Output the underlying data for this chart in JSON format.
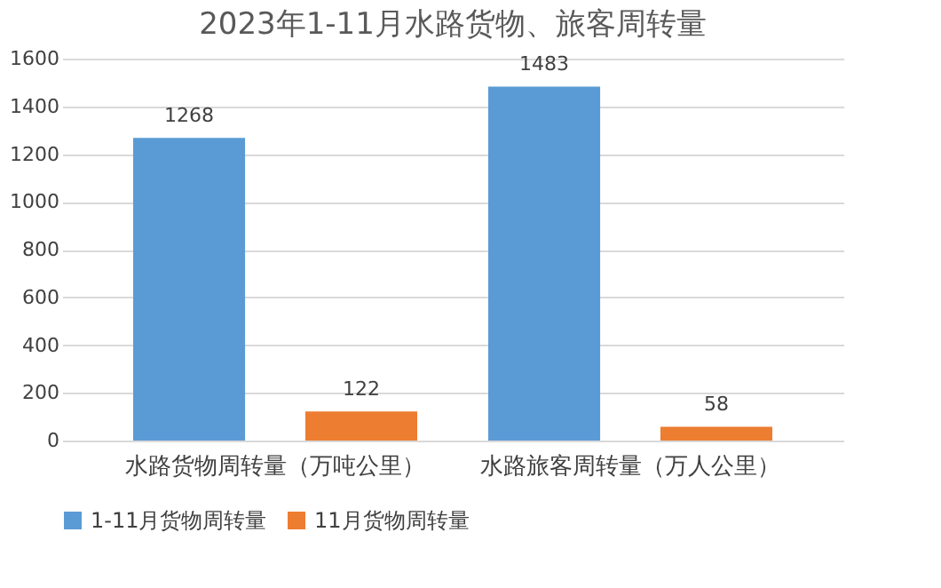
{
  "chart_data": {
    "type": "bar",
    "title": "2023年1-11月水路货物、旅客周转量",
    "categories": [
      "水路货物周转量（万吨公里）",
      "水路旅客周转量（万人公里）"
    ],
    "series": [
      {
        "name": "1-11月货物周转量",
        "color": "#5b9bd5",
        "values": [
          1268,
          1483
        ]
      },
      {
        "name": "11月货物周转量",
        "color": "#ed7d31",
        "values": [
          122,
          58
        ]
      }
    ],
    "ylim": [
      0,
      1600
    ],
    "yticks": [
      0,
      200,
      400,
      600,
      800,
      1000,
      1200,
      1400,
      1600
    ],
    "grid": "y",
    "legend": "bottom",
    "data_labels": true
  }
}
